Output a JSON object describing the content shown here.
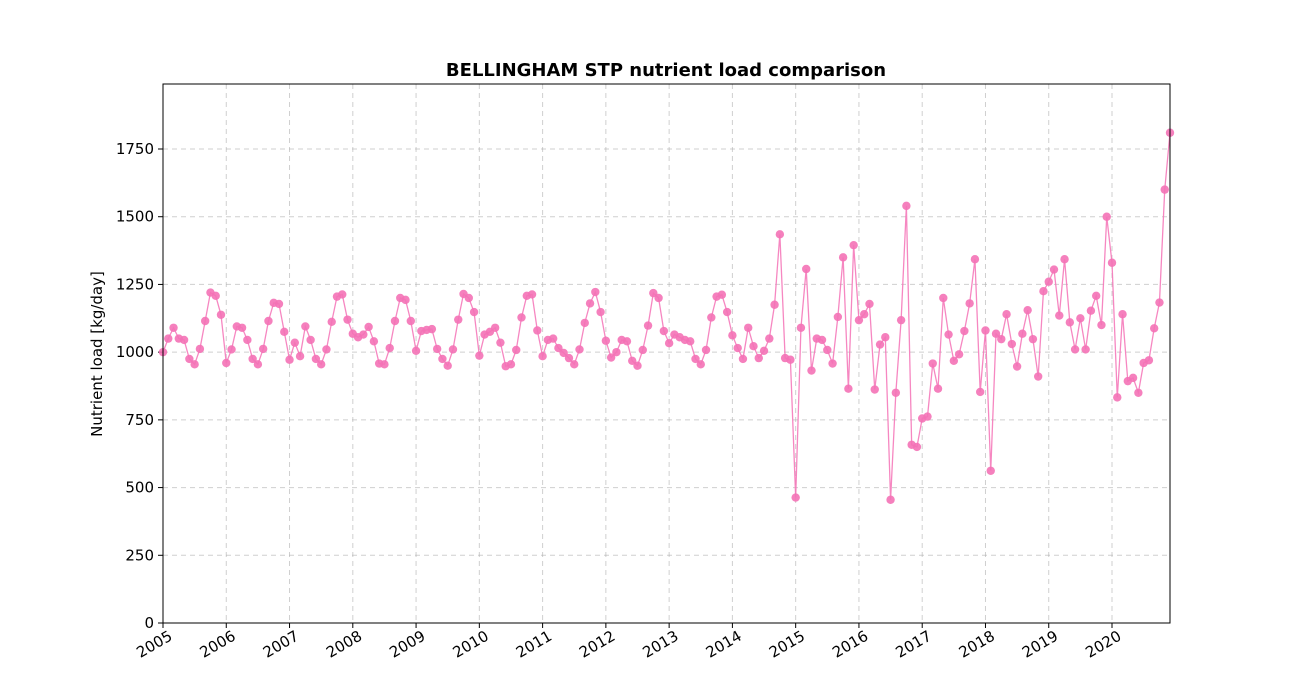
{
  "chart_data": {
    "type": "line",
    "title": "BELLINGHAM STP nutrient load comparison",
    "xlabel": "",
    "ylabel": "Nutrient load [kg/day]",
    "xlim": [
      "2005-01",
      "2020-12"
    ],
    "ylim": [
      0,
      1990
    ],
    "grid": true,
    "x_ticks": [
      "2005",
      "2006",
      "2007",
      "2008",
      "2009",
      "2010",
      "2011",
      "2012",
      "2013",
      "2014",
      "2015",
      "2016",
      "2017",
      "2018",
      "2019",
      "2020"
    ],
    "y_ticks": [
      0,
      250,
      500,
      750,
      1000,
      1250,
      1500,
      1750
    ],
    "series": [
      {
        "color": "#f472b6",
        "x_start": "2005-01",
        "x_step": "1 month",
        "values": [
          1000,
          1050,
          1090,
          1050,
          1045,
          975,
          955,
          1012,
          1115,
          1220,
          1208,
          1138,
          960,
          1010,
          1095,
          1090,
          1045,
          975,
          955,
          1012,
          1115,
          1182,
          1178,
          1075,
          972,
          1035,
          985,
          1095,
          1045,
          975,
          955,
          1010,
          1112,
          1205,
          1213,
          1120,
          1068,
          1055,
          1065,
          1093,
          1040,
          958,
          955,
          1015,
          1115,
          1200,
          1193,
          1115,
          1005,
          1078,
          1082,
          1085,
          1012,
          975,
          950,
          1010,
          1120,
          1215,
          1200,
          1148,
          987,
          1065,
          1075,
          1090,
          1035,
          948,
          955,
          1008,
          1128,
          1208,
          1213,
          1080,
          985,
          1045,
          1050,
          1015,
          997,
          978,
          955,
          1010,
          1108,
          1180,
          1222,
          1148,
          1042,
          980,
          1000,
          1045,
          1040,
          968,
          950,
          1008,
          1098,
          1218,
          1200,
          1078,
          1033,
          1065,
          1055,
          1045,
          1040,
          975,
          955,
          1008,
          1128,
          1205,
          1212,
          1148,
          1062,
          1015,
          975,
          1090,
          1022,
          978,
          1005,
          1050,
          1175,
          1435,
          978,
          972,
          463,
          1090,
          1307,
          932,
          1050,
          1045,
          1008,
          958,
          1130,
          1350,
          865,
          1395,
          1118,
          1140,
          1178,
          862,
          1028,
          1055,
          455,
          850,
          1118,
          1540,
          658,
          650,
          755,
          762,
          958,
          865,
          1200,
          1065,
          968,
          992,
          1078,
          1180,
          1343,
          853,
          1080,
          562,
          1068,
          1048,
          1140,
          1030,
          947,
          1068,
          1155,
          1048,
          910,
          1225,
          1260,
          1305,
          1135,
          1343,
          1110,
          1010,
          1125,
          1010,
          1153,
          1208,
          1100,
          1500,
          1330,
          833,
          1140,
          893,
          905,
          850,
          960,
          970,
          1088,
          1183,
          1600,
          1810
        ]
      }
    ]
  }
}
